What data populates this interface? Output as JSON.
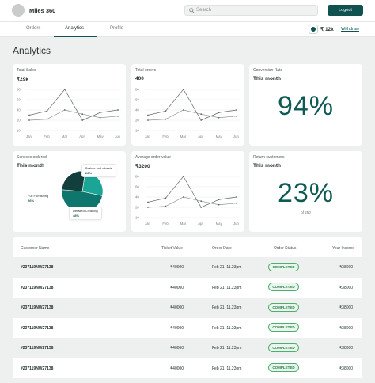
{
  "header": {
    "brand": "Miles 360",
    "search_placeholder": "Search",
    "logout_label": "Logout"
  },
  "tabs": [
    {
      "label": "Orders",
      "active": false
    },
    {
      "label": "Analytics",
      "active": true
    },
    {
      "label": "Profile",
      "active": false
    }
  ],
  "wallet": {
    "balance": "₹ 12k",
    "withdraw_label": "Withdraw"
  },
  "page": {
    "title": "Analytics"
  },
  "colors": {
    "primary": "#0f5250",
    "accent": "#0f5a54",
    "success": "#2d7d48",
    "background": "#eef0ef"
  },
  "cards": {
    "total_sales": {
      "label": "Total Sales",
      "value": "₹29k"
    },
    "total_orders": {
      "label": "Total orders",
      "value": "400"
    },
    "conversion": {
      "label": "Conversion Rate",
      "period": "This month",
      "percent": "94%"
    },
    "services": {
      "label": "Services ordered",
      "period": "This month"
    },
    "avg_order": {
      "label": "Average order value",
      "value": "₹3200"
    },
    "return_customers": {
      "label": "Return customers",
      "period": "This month",
      "percent": "23%",
      "note": "of 250"
    }
  },
  "chart_data": [
    {
      "type": "line",
      "title": "Total Sales",
      "categories": [
        "Jan",
        "Feb",
        "Mar",
        "Apr",
        "May",
        "Jun"
      ],
      "y_ticks": [
        10,
        20,
        40,
        60,
        80
      ],
      "ylim": [
        10,
        80
      ],
      "series": [
        {
          "values": [
            30,
            38,
            80,
            20,
            35,
            40
          ]
        },
        {
          "values": [
            20,
            22,
            40,
            32,
            25,
            28
          ]
        }
      ]
    },
    {
      "type": "line",
      "title": "Total orders",
      "categories": [
        "Jan",
        "Feb",
        "Mar",
        "Apr",
        "May",
        "Jun"
      ],
      "y_ticks": [
        10,
        20,
        40,
        60,
        80
      ],
      "ylim": [
        10,
        80
      ],
      "series": [
        {
          "values": [
            30,
            38,
            80,
            20,
            35,
            40
          ]
        },
        {
          "values": [
            20,
            22,
            40,
            32,
            25,
            28
          ]
        }
      ]
    },
    {
      "type": "line",
      "title": "Average order value",
      "categories": [
        "Jan",
        "Feb",
        "Mar",
        "Apr",
        "May",
        "Jun"
      ],
      "y_ticks": [
        10,
        20,
        40,
        60,
        80
      ],
      "ylim": [
        10,
        80
      ],
      "series": [
        {
          "values": [
            30,
            38,
            80,
            20,
            35,
            40
          ]
        },
        {
          "values": [
            20,
            22,
            40,
            32,
            25,
            28
          ]
        }
      ]
    },
    {
      "type": "pie",
      "title": "Services ordered",
      "slices": [
        {
          "label": "Brakes and wheels",
          "value": 26,
          "display": "26%",
          "color": "#1aa596"
        },
        {
          "label": "Detailed Cleaning",
          "value": 48,
          "display": "48%",
          "color": "#0f766d"
        },
        {
          "label": "Full Furnishing",
          "value": 26,
          "display": "26%",
          "color": "#123f3c"
        }
      ]
    }
  ],
  "table": {
    "columns": [
      "Customer Name",
      "Ticket Value",
      "Order Date",
      "Order Status",
      "Your Income"
    ],
    "rows": [
      [
        "#237119NW27138",
        "₹40000",
        "Feb 21, 11.23pm",
        "COMPLETED",
        "₹38000"
      ],
      [
        "#237119NW27138",
        "₹40000",
        "Feb 21, 11.23pm",
        "COMPLETED",
        "₹38000"
      ],
      [
        "#237119NW27138",
        "₹40000",
        "Feb 21, 11.23pm",
        "COMPLETED",
        "₹38000"
      ],
      [
        "#237119NW27138",
        "₹40000",
        "Feb 21, 11.23pm",
        "COMPLETED",
        "₹38000"
      ],
      [
        "#237119NW27138",
        "₹40000",
        "Feb 21, 11.23pm",
        "COMPLETED",
        "₹38000"
      ],
      [
        "#237119NW27138",
        "₹40000",
        "Feb 21, 11.23pm",
        "COMPLETED",
        "₹38000"
      ],
      [
        "#237119NW27138",
        "₹40000",
        "Feb 21, 11.23pm",
        "COMPLETED",
        "₹38000"
      ]
    ]
  }
}
